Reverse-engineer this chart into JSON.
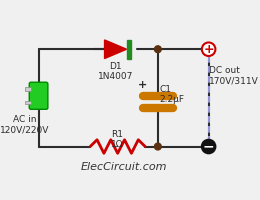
{
  "bg_color": "#f0f0f0",
  "wire_color": "#2c2c2c",
  "title_text": "ElecCircuit.com",
  "title_fontsize": 9,
  "ac_label": "AC in\n120V/220V",
  "dc_label": "DC out\n170V/311V",
  "diode_label": "D1\n1N4007",
  "cap_label": "C1\n2.2μF",
  "res_label": "R1\n1Ω",
  "diode_color_body": "#cc0000",
  "diode_color_bar": "#228B22",
  "cap_color": "#cc7700",
  "res_color": "#cc0000",
  "node_color": "#5a3010",
  "plus_color": "#cc0000",
  "minus_color": "#111111",
  "wire_lw": 1.5,
  "ac_green": "#22cc22",
  "blue_wire": "#aaaaff"
}
